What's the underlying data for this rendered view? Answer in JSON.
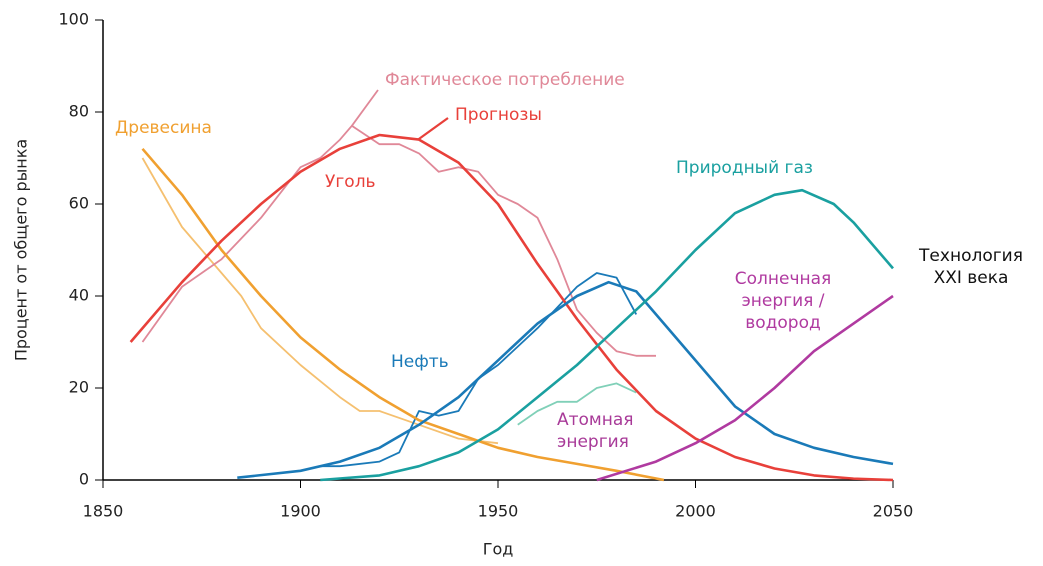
{
  "chart_data": {
    "type": "line",
    "xlabel": "Год",
    "ylabel": "Процент от общего рынка",
    "xlim": [
      1850,
      2050
    ],
    "xticks": [
      1850,
      1900,
      1950,
      2000,
      2050
    ],
    "ylim": [
      0,
      100
    ],
    "yticks": [
      0,
      20,
      40,
      60,
      80,
      100
    ],
    "annotations": [
      "Фактическое потребление",
      "Прогнозы",
      "Технология XXI века"
    ],
    "series": [
      {
        "name": "Древесина",
        "color": "#f0a030",
        "x": [
          1860,
          1870,
          1880,
          1890,
          1900,
          1910,
          1920,
          1930,
          1940,
          1950,
          1960,
          1970,
          1980,
          1992
        ],
        "values": [
          72,
          62,
          50,
          40,
          31,
          24,
          18,
          13,
          10,
          7,
          5,
          3.5,
          2,
          0
        ]
      },
      {
        "name": "Уголь",
        "color": "#e8403a",
        "x": [
          1857,
          1870,
          1880,
          1890,
          1900,
          1910,
          1920,
          1930,
          1940,
          1950,
          1960,
          1970,
          1980,
          1990,
          2000,
          2010,
          2020,
          2030,
          2040,
          2050
        ],
        "values": [
          30,
          43,
          52,
          60,
          67,
          72,
          75,
          74,
          69,
          60,
          47,
          35,
          24,
          15,
          9,
          5,
          2.5,
          1,
          0.3,
          0
        ]
      },
      {
        "name": "Нефть",
        "color": "#1a7ab8",
        "x": [
          1884,
          1900,
          1910,
          1920,
          1930,
          1940,
          1950,
          1960,
          1970,
          1978,
          1985,
          1990,
          2000,
          2010,
          2020,
          2030,
          2040,
          2050
        ],
        "values": [
          0.5,
          2,
          4,
          7,
          12,
          18,
          26,
          34,
          40,
          43,
          41,
          36,
          26,
          16,
          10,
          7,
          5,
          3.5
        ]
      },
      {
        "name": "Природный газ",
        "color": "#1aa0a0",
        "x": [
          1905,
          1920,
          1930,
          1940,
          1950,
          1960,
          1970,
          1980,
          1990,
          2000,
          2010,
          2020,
          2027,
          2035,
          2040,
          2050
        ],
        "values": [
          0,
          1,
          3,
          6,
          11,
          18,
          25,
          33,
          41,
          50,
          58,
          62,
          63,
          60,
          56,
          46
        ]
      },
      {
        "name": "Солнечная энергия / водород",
        "color": "#b03aa0",
        "x": [
          1975,
          1990,
          2000,
          2010,
          2020,
          2030,
          2040,
          2050
        ],
        "values": [
          0,
          4,
          8,
          13,
          20,
          28,
          34,
          40
        ]
      },
      {
        "name": "Атомная энергия",
        "color": "#80d0b8",
        "x": [
          1955,
          1960,
          1965,
          1970,
          1975,
          1980,
          1985
        ],
        "values": [
          12,
          15,
          17,
          17,
          20,
          21,
          19
        ]
      },
      {
        "color": "#e08898",
        "x": [
          1860,
          1870,
          1880,
          1890,
          1900,
          1905,
          1910,
          1913,
          1920,
          1925,
          1930,
          1935,
          1940,
          1945,
          1950,
          1955,
          1960,
          1965,
          1970,
          1975,
          1980,
          1985,
          1990
        ],
        "values": [
          30,
          42,
          48,
          57,
          68,
          70,
          74,
          77,
          73,
          73,
          71,
          67,
          68,
          67,
          62,
          60,
          57,
          48,
          37,
          32,
          28,
          27,
          27
        ]
      },
      {
        "color": "#f5c070",
        "x": [
          1860,
          1870,
          1875,
          1880,
          1885,
          1890,
          1900,
          1910,
          1915,
          1920,
          1930,
          1940,
          1950
        ],
        "values": [
          70,
          55,
          50,
          45,
          40,
          33,
          25,
          18,
          15,
          15,
          12,
          9,
          8
        ]
      },
      {
        "color": "#1a7ab8",
        "x": [
          1905,
          1910,
          1920,
          1925,
          1930,
          1935,
          1940,
          1945,
          1950,
          1960,
          1970,
          1975,
          1980,
          1985
        ],
        "values": [
          3,
          3,
          4,
          6,
          15,
          14,
          15,
          22,
          25,
          33,
          42,
          45,
          44,
          36
        ]
      }
    ]
  }
}
